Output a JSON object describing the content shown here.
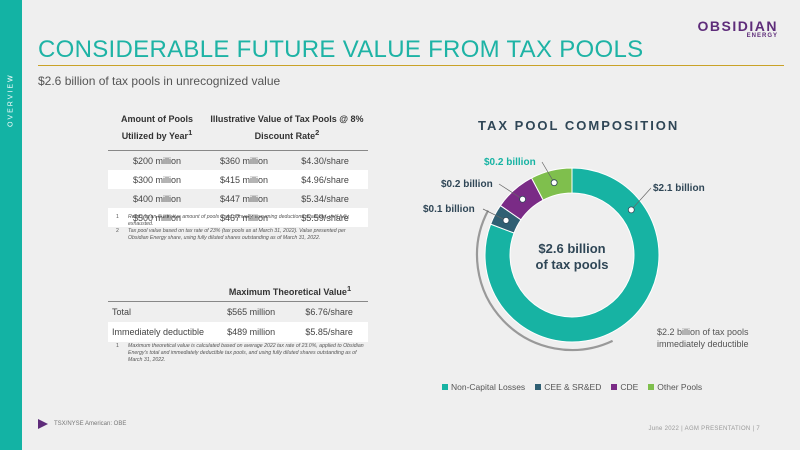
{
  "sidebar": {
    "label": "OVERVIEW"
  },
  "logo": {
    "main": "OBSIDIAN",
    "sub": "ENERGY"
  },
  "header": {
    "title": "CONSIDERABLE FUTURE VALUE FROM TAX POOLS",
    "subtitle": "$2.6 billion of tax pools in unrecognized value"
  },
  "table1": {
    "headers": [
      "Amount of Pools Utilized by Year",
      "Illustrative Value of Tax Pools @ 8% Discount Rate"
    ],
    "header1_sup": "1",
    "header2_sup": "2",
    "rows": [
      [
        "$200 million",
        "$360 million",
        "$4.30/share"
      ],
      [
        "$300 million",
        "$415 million",
        "$4.96/share"
      ],
      [
        "$400 million",
        "$447 million",
        "$5.34/share"
      ],
      [
        "$500 million",
        "$467 million",
        "$5.59/share"
      ]
    ],
    "notes": [
      {
        "num": "1",
        "text": "Refers to an illustrative amount of pools used annually, assuming deductions available, until fully exhausted."
      },
      {
        "num": "2",
        "text": "Tax pool value based on tax rate of 23% (tax pools as at March 31, 2022). Value presented per Obsidian Energy share, using fully diluted shares outstanding as of March 31, 2022."
      }
    ]
  },
  "table2": {
    "header": "Maximum Theoretical Value",
    "header_sup": "1",
    "rows": [
      [
        "Total",
        "$565 million",
        "$6.76/share"
      ],
      [
        "Immediately deductible",
        "$489 million",
        "$5.85/share"
      ]
    ],
    "notes": [
      {
        "num": "1",
        "text": "Maximum theoretical value is calculated based on average 2022 tax rate of 23.0%, applied to Obsidian Energy's total and immediately deductible tax pools, and using fully diluted shares outstanding as of March 31, 2022."
      }
    ]
  },
  "chart_data": {
    "type": "pie",
    "title": "TAX POOL COMPOSITION",
    "center_label": [
      "$2.6 billion",
      "of tax pools"
    ],
    "categories": [
      "Non-Capital Losses",
      "CEE & SR&ED",
      "CDE",
      "Other Pools"
    ],
    "values": [
      2.1,
      0.1,
      0.2,
      0.2
    ],
    "value_labels": [
      "$2.1 billion",
      "$0.1 billion",
      "$0.2 billion",
      "$0.2 billion"
    ],
    "colors": [
      "#17b3a3",
      "#2f5f73",
      "#7a2b86",
      "#7fbf4d"
    ],
    "label_colors": [
      "#2f4656",
      "#2f4656",
      "#2f4656",
      "#17b3a3"
    ],
    "annotation": "$2.2 billion of tax pools immediately deductible",
    "annotation_lines": [
      "$2.2 billion of tax pools",
      "immediately deductible"
    ],
    "legend_position": "bottom"
  },
  "footer": {
    "left": "TSX/NYSE American: OBE",
    "right": "June 2022  |  AGM PRESENTATION  |     7"
  }
}
